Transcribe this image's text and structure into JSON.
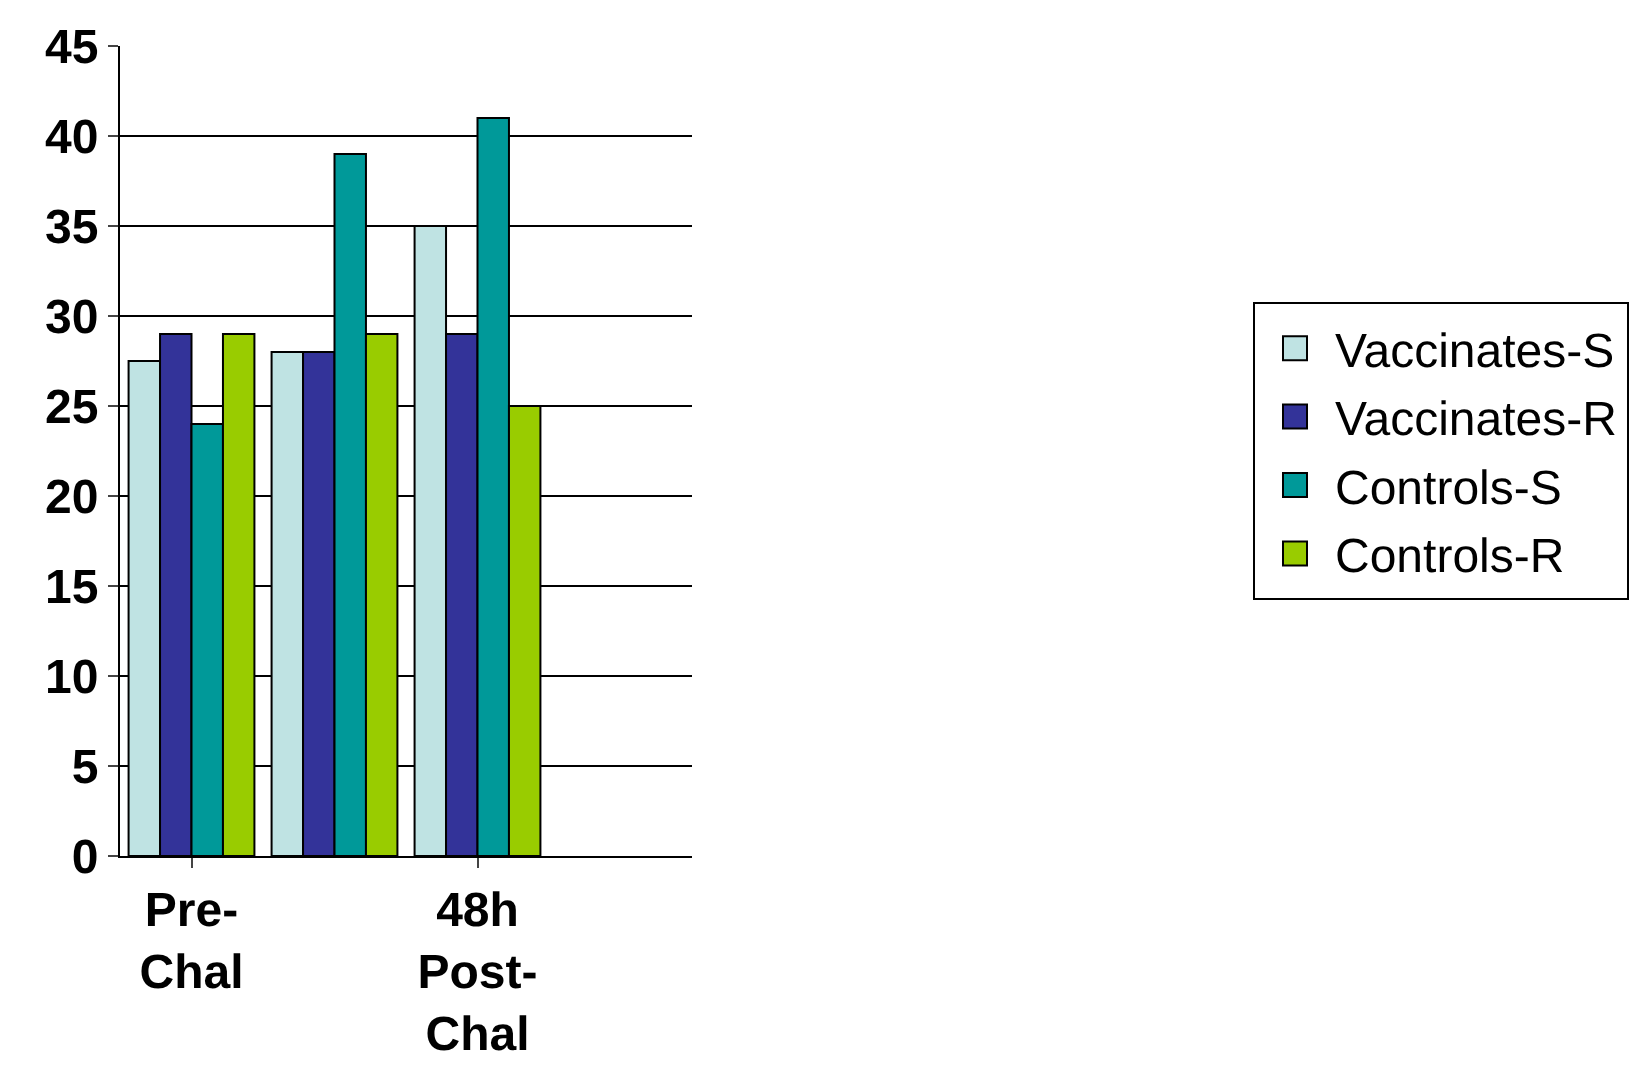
{
  "chart_data": {
    "type": "bar",
    "categories": [
      "Pre-Chal",
      null,
      "48h Post-Chal",
      null
    ],
    "series": [
      {
        "name": "Vaccinates-S",
        "color": "#bfe3e3",
        "values": [
          27.5,
          28,
          35,
          null
        ]
      },
      {
        "name": "Vaccinates-R",
        "color": "#333399",
        "values": [
          29,
          28,
          29,
          null
        ]
      },
      {
        "name": "Controls-S",
        "color": "#009999",
        "values": [
          24,
          39,
          41,
          null
        ]
      },
      {
        "name": "Controls-R",
        "color": "#99cc00",
        "values": [
          29,
          29,
          25,
          null
        ]
      }
    ],
    "ylim": [
      0,
      45
    ],
    "yticks": [
      0,
      5,
      10,
      15,
      20,
      25,
      30,
      35,
      40,
      45
    ],
    "grid": "y",
    "legend": "right"
  }
}
